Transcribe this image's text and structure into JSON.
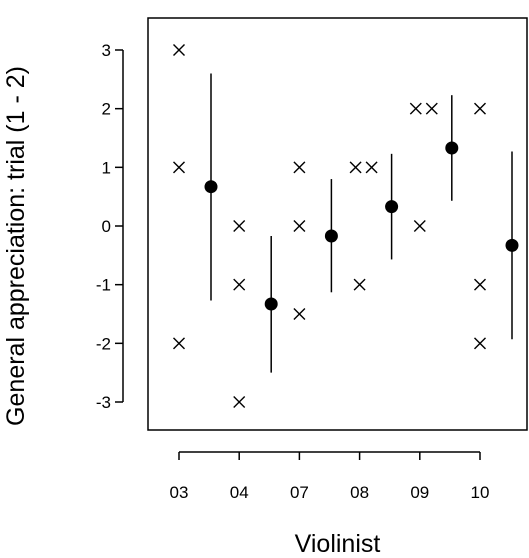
{
  "chart_data": {
    "type": "scatter",
    "xlabel": "Violinist",
    "ylabel": "General appreciation: trial (1 - 2)",
    "categories": [
      "03",
      "04",
      "07",
      "08",
      "09",
      "10"
    ],
    "yticks": [
      "-3",
      "-2",
      "-1",
      "0",
      "1",
      "2",
      "3"
    ],
    "ylim": [
      -3.25,
      3.25
    ],
    "grid": false,
    "series": [
      {
        "marker": "cross",
        "points": [
          {
            "x": "03",
            "y": 3
          },
          {
            "x": "03",
            "y": 1
          },
          {
            "x": "03",
            "y": -2
          },
          {
            "x": "04",
            "y": 0
          },
          {
            "x": "04",
            "y": -1
          },
          {
            "x": "04",
            "y": -3
          },
          {
            "x": "07",
            "y": 1
          },
          {
            "x": "07",
            "y": 0
          },
          {
            "x": "07",
            "y": -1.5
          },
          {
            "x": "08",
            "y": 1
          },
          {
            "x": "08",
            "y": 1
          },
          {
            "x": "08",
            "y": -1
          },
          {
            "x": "09",
            "y": 2
          },
          {
            "x": "09",
            "y": 2
          },
          {
            "x": "09",
            "y": 0
          },
          {
            "x": "10",
            "y": 2
          },
          {
            "x": "10",
            "y": -1
          },
          {
            "x": "10",
            "y": -2
          }
        ]
      },
      {
        "marker": "filled-circle-with-interval",
        "points": [
          {
            "x": "03",
            "mean": 0.67,
            "lower": -1.27,
            "upper": 2.6
          },
          {
            "x": "04",
            "mean": -1.33,
            "lower": -2.5,
            "upper": -0.17
          },
          {
            "x": "07",
            "mean": -0.17,
            "lower": -1.13,
            "upper": 0.8
          },
          {
            "x": "08",
            "mean": 0.33,
            "lower": -0.57,
            "upper": 1.23
          },
          {
            "x": "09",
            "mean": 1.33,
            "lower": 0.43,
            "upper": 2.23
          },
          {
            "x": "10",
            "mean": -0.33,
            "lower": -1.93,
            "upper": 1.27
          }
        ]
      }
    ]
  }
}
